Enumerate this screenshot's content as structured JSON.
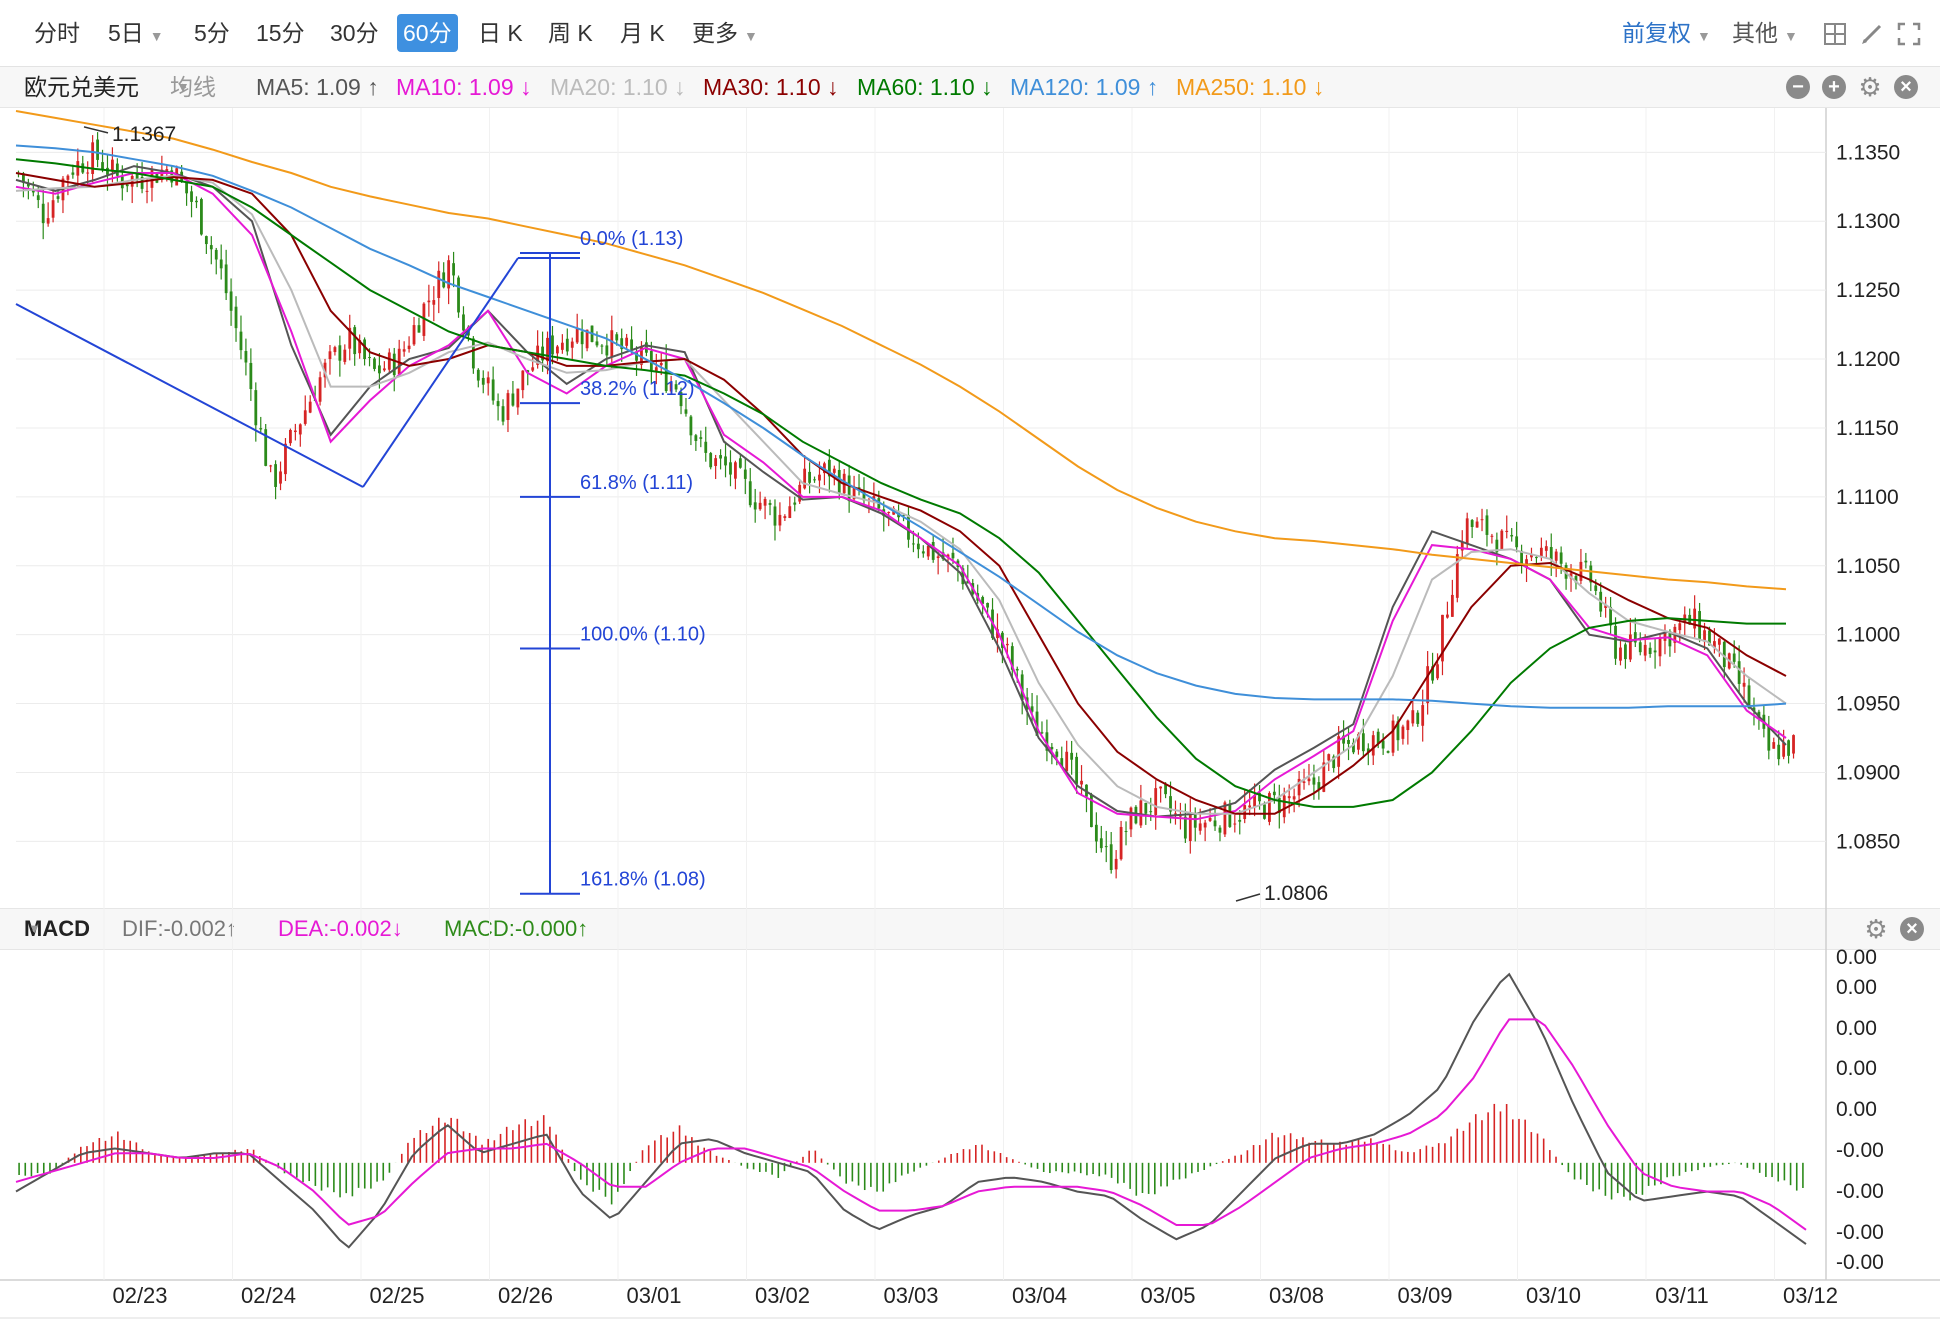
{
  "toolbar": {
    "periods": [
      "分时",
      "5日",
      "5分",
      "15分",
      "30分",
      "60分",
      "日 K",
      "周 K",
      "月 K",
      "更多"
    ],
    "active_period": "60分",
    "adjust": "前复权",
    "other": "其他"
  },
  "legend": {
    "symbol": "欧元兑美元",
    "ma_type": "均线",
    "items": [
      {
        "label": "MA5: 1.09 ↑",
        "color": "#555555"
      },
      {
        "label": "MA10: 1.09 ↓",
        "color": "#e619d5"
      },
      {
        "label": "MA20: 1.10 ↓",
        "color": "#bbbbbb"
      },
      {
        "label": "MA30: 1.10 ↓",
        "color": "#8b0000"
      },
      {
        "label": "MA60: 1.10 ↓",
        "color": "#007a00"
      },
      {
        "label": "MA120: 1.09 ↑",
        "color": "#3f8fd9"
      },
      {
        "label": "MA250: 1.10 ↓",
        "color": "#f29a1a"
      }
    ]
  },
  "sub_legend": {
    "name": "MACD",
    "dif": "DIF:-0.002↑",
    "dea": "DEA:-0.002↓",
    "macd": "MACD:-0.000↑"
  },
  "chart_data": [
    {
      "type": "candlestick",
      "title": "欧元兑美元 60分",
      "y_ticks": [
        "1.1350",
        "1.1300",
        "1.1250",
        "1.1200",
        "1.1150",
        "1.1100",
        "1.1050",
        "1.1000",
        "1.0950",
        "1.0900",
        "1.0850"
      ],
      "ylim": [
        1.0806,
        1.138
      ],
      "x_ticks": [
        "02/23",
        "02/24",
        "02/25",
        "02/26",
        "03/01",
        "03/02",
        "03/03",
        "03/04",
        "03/05",
        "03/08",
        "03/09",
        "03/10",
        "03/11",
        "03/12"
      ],
      "annotations": [
        {
          "label": "1.1367",
          "type": "high"
        },
        {
          "label": "1.0806",
          "type": "low"
        }
      ],
      "fibonacci": [
        {
          "label": "0.0% (1.13)",
          "level": 1.1277
        },
        {
          "label": "38.2% (1.12)",
          "level": 1.1168
        },
        {
          "label": "61.8% (1.11)",
          "level": 1.11
        },
        {
          "label": "100.0% (1.10)",
          "level": 1.099
        },
        {
          "label": "161.8% (1.08)",
          "level": 1.0812
        }
      ],
      "close_keypoints": [
        1.1335,
        1.1305,
        1.1338,
        1.1348,
        1.133,
        1.1332,
        1.1339,
        1.131,
        1.1262,
        1.1192,
        1.1108,
        1.1152,
        1.119,
        1.1215,
        1.119,
        1.12,
        1.1238,
        1.127,
        1.1198,
        1.116,
        1.119,
        1.121,
        1.122,
        1.1215,
        1.1205,
        1.1195,
        1.118,
        1.113,
        1.112,
        1.11,
        1.1085,
        1.111,
        1.112,
        1.11,
        1.1088,
        1.1075,
        1.106,
        1.105,
        1.102,
        1.0985,
        1.0935,
        1.092,
        1.088,
        1.0835,
        1.087,
        1.088,
        1.086,
        1.0865,
        1.087,
        1.0875,
        1.088,
        1.089,
        1.0915,
        1.0925,
        1.0925,
        1.0935,
        1.099,
        1.108,
        1.1075,
        1.106,
        1.106,
        1.105,
        1.104,
        1.099,
        1.099,
        1.1,
        1.101,
        1.099,
        1.096,
        1.0915,
        1.092
      ],
      "ma_series": [
        {
          "name": "MA5",
          "color": "#555555",
          "values": [
            1.133,
            1.1322,
            1.133,
            1.134,
            1.1335,
            1.1325,
            1.13,
            1.121,
            1.1145,
            1.118,
            1.12,
            1.1208,
            1.1235,
            1.1205,
            1.1182,
            1.12,
            1.121,
            1.1205,
            1.114,
            1.1118,
            1.1098,
            1.11,
            1.1088,
            1.107,
            1.1045,
            1.099,
            1.0925,
            1.089,
            1.0872,
            1.0868,
            1.087,
            1.0878,
            1.0902,
            1.0918,
            1.0935,
            1.102,
            1.1075,
            1.1065,
            1.1055,
            1.104,
            1.1,
            1.0995,
            1.1002,
            1.099,
            1.095,
            1.092
          ]
        },
        {
          "name": "MA10",
          "color": "#e619d5",
          "values": [
            1.1325,
            1.132,
            1.1328,
            1.1335,
            1.1335,
            1.132,
            1.129,
            1.122,
            1.114,
            1.117,
            1.1195,
            1.121,
            1.1235,
            1.119,
            1.1175,
            1.1195,
            1.1208,
            1.12,
            1.1145,
            1.1125,
            1.11,
            1.11,
            1.109,
            1.107,
            1.105,
            1.1,
            1.093,
            1.0885,
            1.087,
            1.0868,
            1.0866,
            1.0872,
            1.0895,
            1.0912,
            1.093,
            1.101,
            1.1065,
            1.1062,
            1.1055,
            1.104,
            1.1005,
            1.0996,
            1.0998,
            1.0985,
            1.0945,
            1.0925
          ]
        },
        {
          "name": "MA20",
          "color": "#bbbbbb",
          "values": [
            1.1322,
            1.1324,
            1.1325,
            1.133,
            1.1333,
            1.1328,
            1.1305,
            1.125,
            1.118,
            1.118,
            1.119,
            1.1205,
            1.1212,
            1.12,
            1.119,
            1.1192,
            1.1198,
            1.12,
            1.117,
            1.114,
            1.111,
            1.1102,
            1.1095,
            1.1082,
            1.1062,
            1.1025,
            1.0965,
            1.092,
            1.089,
            1.0875,
            1.087,
            1.087,
            1.088,
            1.09,
            1.092,
            1.097,
            1.104,
            1.106,
            1.1062,
            1.1055,
            1.103,
            1.101,
            1.1002,
            1.0995,
            1.097,
            1.095
          ]
        },
        {
          "name": "MA30",
          "color": "#8b0000",
          "values": [
            1.1335,
            1.133,
            1.1325,
            1.1328,
            1.1332,
            1.133,
            1.132,
            1.129,
            1.1235,
            1.1205,
            1.1195,
            1.12,
            1.121,
            1.1205,
            1.1195,
            1.1195,
            1.1198,
            1.12,
            1.1185,
            1.116,
            1.113,
            1.111,
            1.11,
            1.109,
            1.1075,
            1.105,
            1.1,
            1.095,
            1.0915,
            1.0895,
            1.088,
            1.087,
            1.087,
            1.0885,
            1.0905,
            1.093,
            1.0975,
            1.102,
            1.105,
            1.1052,
            1.104,
            1.1025,
            1.1012,
            1.1005,
            1.0985,
            1.097
          ]
        },
        {
          "name": "MA60",
          "color": "#007a00",
          "values": [
            1.1345,
            1.1342,
            1.1338,
            1.1335,
            1.133,
            1.1325,
            1.131,
            1.129,
            1.127,
            1.125,
            1.1235,
            1.122,
            1.121,
            1.1205,
            1.12,
            1.1195,
            1.1192,
            1.1188,
            1.1175,
            1.116,
            1.114,
            1.1125,
            1.111,
            1.1098,
            1.1088,
            1.107,
            1.1045,
            1.101,
            1.0975,
            1.094,
            1.091,
            1.089,
            1.088,
            1.0875,
            1.0875,
            1.088,
            1.09,
            1.093,
            1.0965,
            1.099,
            1.1005,
            1.101,
            1.1012,
            1.101,
            1.1008,
            1.1008
          ]
        },
        {
          "name": "MA120",
          "color": "#3f8fd9",
          "values": [
            1.1355,
            1.1353,
            1.135,
            1.1345,
            1.134,
            1.1333,
            1.1322,
            1.131,
            1.1295,
            1.128,
            1.1268,
            1.1255,
            1.1245,
            1.1235,
            1.1225,
            1.1215,
            1.12,
            1.1185,
            1.1168,
            1.115,
            1.113,
            1.1112,
            1.1095,
            1.1078,
            1.106,
            1.1042,
            1.1022,
            1.1002,
            1.0985,
            1.0972,
            1.0963,
            1.0957,
            1.0954,
            1.0953,
            1.0953,
            1.0953,
            1.0952,
            1.095,
            1.0948,
            1.0947,
            1.0947,
            1.0947,
            1.0948,
            1.0948,
            1.0948,
            1.095
          ]
        },
        {
          "name": "MA250",
          "color": "#f29a1a",
          "values": [
            1.138,
            1.1375,
            1.137,
            1.1365,
            1.136,
            1.1352,
            1.1343,
            1.1335,
            1.1325,
            1.1318,
            1.1312,
            1.1306,
            1.1302,
            1.1296,
            1.129,
            1.1284,
            1.1276,
            1.1268,
            1.1258,
            1.1248,
            1.1236,
            1.1224,
            1.121,
            1.1196,
            1.118,
            1.1162,
            1.1142,
            1.1122,
            1.1105,
            1.1092,
            1.1082,
            1.1075,
            1.107,
            1.1068,
            1.1065,
            1.1062,
            1.1058,
            1.1055,
            1.1052,
            1.1049,
            1.1046,
            1.1043,
            1.104,
            1.1038,
            1.1035,
            1.1033
          ]
        }
      ]
    },
    {
      "type": "bar",
      "title": "MACD",
      "y_ticks": [
        "0.00",
        "0.00",
        "0.00",
        "0.00",
        "0.00",
        "-0.00",
        "-0.00",
        "-0.00",
        "-0.00"
      ],
      "x_ticks": [
        "02/23",
        "02/24",
        "02/25",
        "02/26",
        "03/01",
        "03/02",
        "03/03",
        "03/04",
        "03/05",
        "03/08",
        "03/09",
        "03/10",
        "03/11",
        "03/12"
      ],
      "hist": [
        -0.0003,
        -0.0002,
        0.0004,
        0.0006,
        0.0002,
        0.0001,
        0.0002,
        0.0003,
        -0.0002,
        -0.0005,
        -0.0007,
        -0.0004,
        0.0006,
        0.001,
        0.0004,
        0.0008,
        0.0009,
        -0.0004,
        -0.0008,
        0.0004,
        0.0007,
        0.0002,
        -0.0001,
        -0.0003,
        0.0003,
        -0.0004,
        -0.0006,
        -0.0002,
        0.0001,
        0.0004,
        0.0001,
        -0.0002,
        -0.0002,
        -0.0003,
        -0.0007,
        -0.0004,
        -0.0001,
        0.0002,
        0.0006,
        0.0005,
        0.0004,
        0.0005,
        0.0002,
        0.0004,
        0.0009,
        0.0012,
        0.0006,
        -0.0003,
        -0.0007,
        -0.0007,
        -0.0003,
        -0.0001,
        0.0,
        -0.0003,
        -0.0006
      ],
      "dif": [
        -0.0006,
        -0.0002,
        0.0002,
        0.0003,
        0.0002,
        0.0001,
        0.0002,
        0.0002,
        -0.0004,
        -0.001,
        -0.0018,
        -0.001,
        0.0002,
        0.0008,
        0.0002,
        0.0004,
        0.0006,
        -0.0006,
        -0.0012,
        -0.0004,
        0.0004,
        0.0005,
        0.0002,
        0.0,
        -0.0002,
        -0.001,
        -0.0014,
        -0.0011,
        -0.0009,
        -0.0004,
        -0.0003,
        -0.0004,
        -0.0006,
        -0.0007,
        -0.0012,
        -0.0016,
        -0.0013,
        -0.0006,
        0.0001,
        0.0004,
        0.0004,
        0.0006,
        0.001,
        0.0016,
        0.003,
        0.004,
        0.0028,
        0.0012,
        -0.0002,
        -0.0008,
        -0.0007,
        -0.0006,
        -0.0007,
        -0.0012,
        -0.0017
      ],
      "dea": [
        -0.0004,
        -0.0002,
        0.0,
        0.0002,
        0.0002,
        0.0001,
        0.0001,
        0.0002,
        -0.0001,
        -0.0006,
        -0.0013,
        -0.0011,
        -0.0004,
        0.0002,
        0.0003,
        0.0003,
        0.0004,
        0.0,
        -0.0005,
        -0.0005,
        0.0,
        0.0003,
        0.0003,
        0.0001,
        -0.0001,
        -0.0006,
        -0.001,
        -0.001,
        -0.0009,
        -0.0006,
        -0.0005,
        -0.0005,
        -0.0005,
        -0.0006,
        -0.0009,
        -0.0013,
        -0.0013,
        -0.0009,
        -0.0004,
        0.0001,
        0.0003,
        0.0004,
        0.0006,
        0.001,
        0.0018,
        0.003,
        0.003,
        0.002,
        0.0008,
        -0.0002,
        -0.0005,
        -0.0006,
        -0.0006,
        -0.0009,
        -0.0014
      ]
    }
  ]
}
